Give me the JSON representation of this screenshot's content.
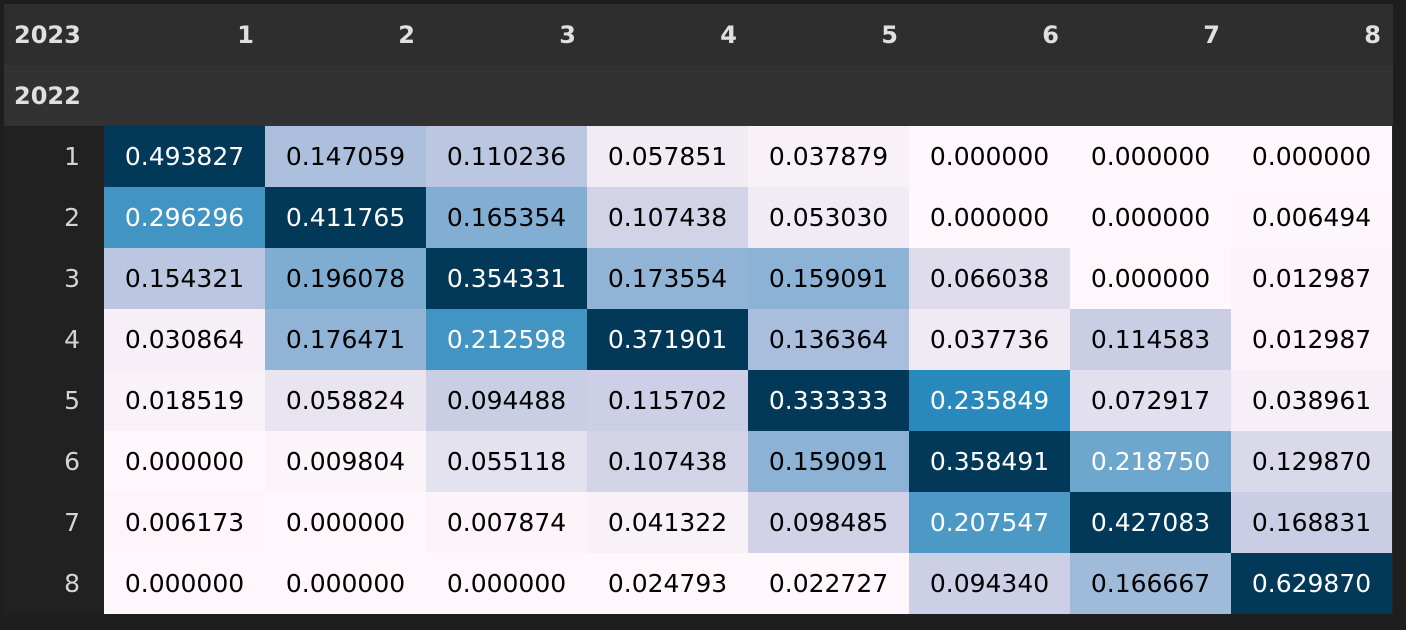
{
  "table": {
    "columns_name": "2023",
    "index_name": "2022"
  },
  "colors": {
    "low": "#fff7fb",
    "high": "#023858",
    "light_text": "#ffffff",
    "dark_text": "#000000"
  },
  "chart_data": {
    "type": "heatmap",
    "title": "",
    "xlabel": "2023",
    "ylabel": "2022",
    "colormap": "PuBu",
    "color_scaling": "per column (min to max within each column)",
    "x": [
      "1",
      "2",
      "3",
      "4",
      "5",
      "6",
      "7",
      "8"
    ],
    "y": [
      "1",
      "2",
      "3",
      "4",
      "5",
      "6",
      "7",
      "8"
    ],
    "values": [
      [
        "0.493827",
        "0.147059",
        "0.110236",
        "0.057851",
        "0.037879",
        "0.000000",
        "0.000000",
        "0.000000"
      ],
      [
        "0.296296",
        "0.411765",
        "0.165354",
        "0.107438",
        "0.053030",
        "0.000000",
        "0.000000",
        "0.006494"
      ],
      [
        "0.154321",
        "0.196078",
        "0.354331",
        "0.173554",
        "0.159091",
        "0.066038",
        "0.000000",
        "0.012987"
      ],
      [
        "0.030864",
        "0.176471",
        "0.212598",
        "0.371901",
        "0.136364",
        "0.037736",
        "0.114583",
        "0.012987"
      ],
      [
        "0.018519",
        "0.058824",
        "0.094488",
        "0.115702",
        "0.333333",
        "0.235849",
        "0.072917",
        "0.038961"
      ],
      [
        "0.000000",
        "0.009804",
        "0.055118",
        "0.107438",
        "0.159091",
        "0.358491",
        "0.218750",
        "0.129870"
      ],
      [
        "0.006173",
        "0.000000",
        "0.007874",
        "0.041322",
        "0.098485",
        "0.207547",
        "0.427083",
        "0.168831"
      ],
      [
        "0.000000",
        "0.000000",
        "0.000000",
        "0.024793",
        "0.022727",
        "0.094340",
        "0.166667",
        "0.629870"
      ]
    ]
  }
}
